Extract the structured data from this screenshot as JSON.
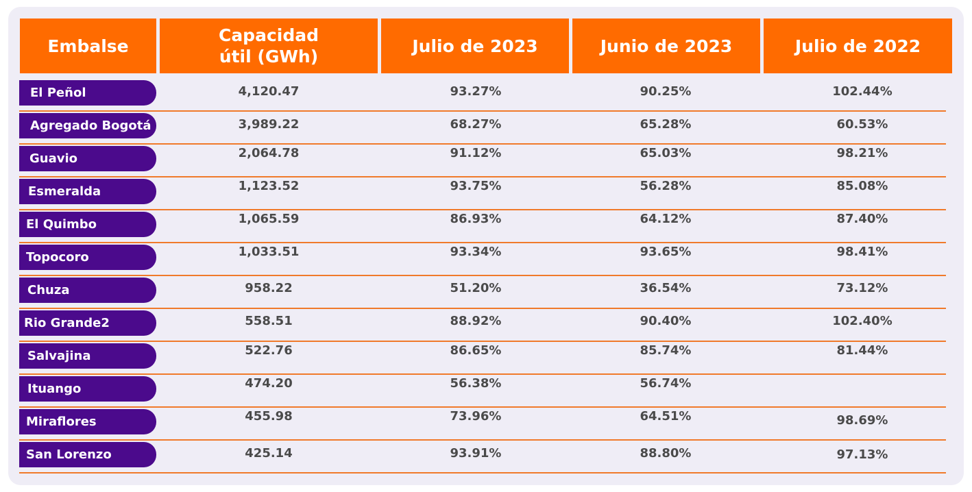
{
  "headers": [
    "Embalse",
    "Capacidad\nútil (GWh)",
    "Julio de 2023",
    "Junio de 2023",
    "Julio de 2022"
  ],
  "rows": [
    {
      "name": "El Peñol",
      "cap": "4,120.47",
      "jul23": "93.27%",
      "jun23": "90.25%",
      "jul22": "102.44%"
    },
    {
      "name": "Agregado Bogotá",
      "cap": "3,989.22",
      "jul23": "68.27%",
      "jun23": "65.28%",
      "jul22": "60.53%"
    },
    {
      "name": "Guavio",
      "cap": "2,064.78",
      "jul23": "91.12%",
      "jun23": "65.03%",
      "jul22": "98.21%"
    },
    {
      "name": "Esmeralda",
      "cap": "1,123.52",
      "jul23": "93.75%",
      "jun23": "56.28%",
      "jul22": "85.08%"
    },
    {
      "name": "El Quimbo",
      "cap": "1,065.59",
      "jul23": "86.93%",
      "jun23": "64.12%",
      "jul22": "87.40%"
    },
    {
      "name": "Topocoro",
      "cap": "1,033.51",
      "jul23": "93.34%",
      "jun23": "93.65%",
      "jul22": "98.41%"
    },
    {
      "name": "Chuza",
      "cap": "958.22",
      "jul23": "51.20%",
      "jun23": "36.54%",
      "jul22": "73.12%"
    },
    {
      "name": "Rio Grande2",
      "cap": "558.51",
      "jul23": "88.92%",
      "jun23": "90.40%",
      "jul22": "102.40%"
    },
    {
      "name": "Salvajina",
      "cap": "522.76",
      "jul23": "86.65%",
      "jun23": "85.74%",
      "jul22": "81.44%"
    },
    {
      "name": "Ituango",
      "cap": "474.20",
      "jul23": "56.38%",
      "jun23": "56.74%",
      "jul22": ""
    },
    {
      "name": "Miraflores",
      "cap": "455.98",
      "jul23": "73.96%",
      "jun23": "64.51%",
      "jul22": "98.69%"
    },
    {
      "name": "San Lorenzo",
      "cap": "425.14",
      "jul23": "93.91%",
      "jun23": "88.80%",
      "jul22": "97.13%"
    }
  ],
  "colors": {
    "header": "#ff6b00",
    "pill": "#4b0a8c",
    "panel": "#efedf6",
    "divider": "#f07a2a"
  }
}
